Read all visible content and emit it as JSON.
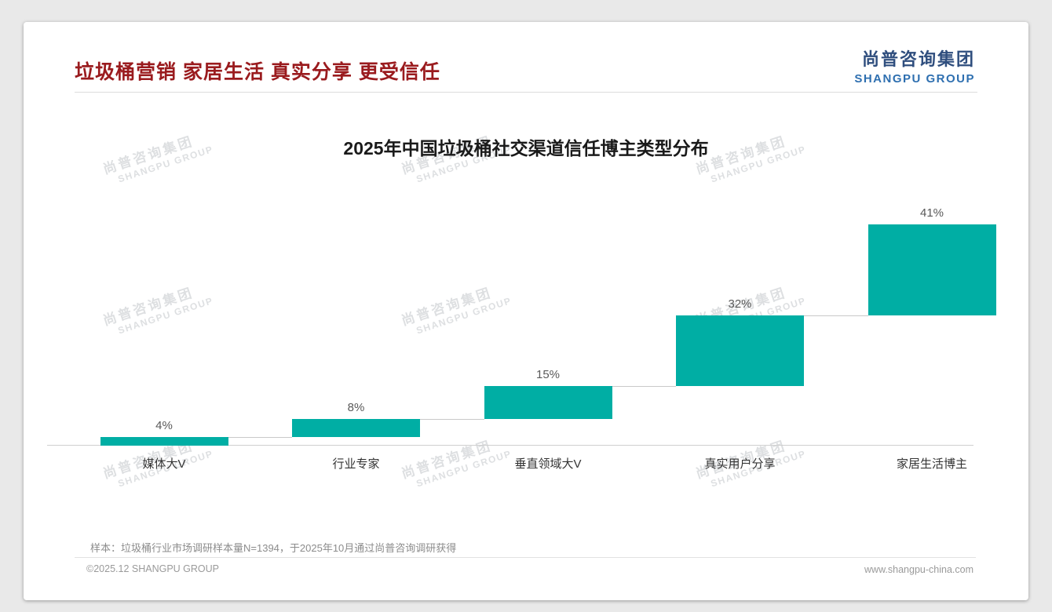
{
  "header": {
    "title": "垃圾桶营销 家居生活 真实分享 更受信任",
    "logo_cn": "尚普咨询集团",
    "logo_en": "SHANGPU GROUP"
  },
  "watermark": {
    "line1": "尚普咨询集团",
    "line2": "SHANGPU GROUP"
  },
  "chart_data": {
    "type": "bar",
    "subtype": "waterfall",
    "title": "2025年中国垃圾桶社交渠道信任博主类型分布",
    "categories": [
      "媒体大V",
      "行业专家",
      "垂直领域大V",
      "真实用户分享",
      "家居生活博主"
    ],
    "values": [
      4,
      8,
      15,
      32,
      41
    ],
    "value_labels": [
      "4%",
      "8%",
      "15%",
      "32%",
      "41%"
    ],
    "cumulative_starts": [
      0,
      4,
      12,
      27,
      59
    ],
    "bar_color": "#00AEA4",
    "connector_color": "#c9c9c9",
    "ylim": [
      0,
      100
    ],
    "grid": false,
    "legend": "none"
  },
  "footer": {
    "note": "样本：垃圾桶行业市场调研样本量N=1394，于2025年10月通过尚普咨询调研获得",
    "left": "©2025.12 SHANGPU GROUP",
    "right": "www.shangpu-china.com"
  }
}
